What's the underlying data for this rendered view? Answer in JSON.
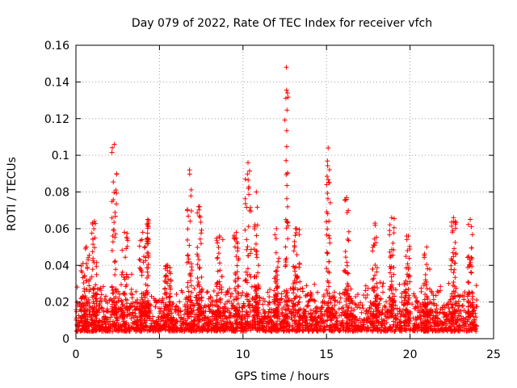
{
  "chart_data": {
    "type": "scatter",
    "title": "Day 079 of 2022, Rate Of TEC Index for receiver vfch",
    "xlabel": "GPS time / hours",
    "ylabel": "ROTI / TECUs",
    "xlim": [
      0,
      25
    ],
    "ylim": [
      0,
      0.16
    ],
    "x_ticks": [
      0,
      5,
      10,
      15,
      20,
      25
    ],
    "x_tick_labels": [
      "0",
      "5",
      "10",
      "15",
      "20",
      "25"
    ],
    "y_ticks": [
      0,
      0.02,
      0.04,
      0.06,
      0.08,
      0.1,
      0.12,
      0.14,
      0.16
    ],
    "y_tick_labels": [
      "0",
      "0.02",
      "0.04",
      "0.06",
      "0.08",
      "0.1",
      "0.12",
      "0.14",
      "0.16"
    ],
    "grid": true,
    "marker": "+",
    "marker_color": "#ff0000",
    "baseline": {
      "x_range": [
        0,
        24
      ],
      "min": 0.004,
      "max": 0.03
    },
    "bursts": [
      {
        "center": 0.6,
        "width": 0.6,
        "peak": 0.05
      },
      {
        "center": 1.1,
        "width": 0.3,
        "peak": 0.064
      },
      {
        "center": 2.3,
        "width": 0.3,
        "peak": 0.106
      },
      {
        "center": 2.9,
        "width": 0.4,
        "peak": 0.058
      },
      {
        "center": 4.0,
        "width": 0.5,
        "peak": 0.058
      },
      {
        "center": 4.3,
        "width": 0.1,
        "peak": 0.065
      },
      {
        "center": 5.5,
        "width": 0.4,
        "peak": 0.04
      },
      {
        "center": 6.8,
        "width": 0.3,
        "peak": 0.092
      },
      {
        "center": 7.4,
        "width": 0.3,
        "peak": 0.072
      },
      {
        "center": 8.6,
        "width": 0.4,
        "peak": 0.056
      },
      {
        "center": 9.6,
        "width": 0.3,
        "peak": 0.058
      },
      {
        "center": 10.3,
        "width": 0.4,
        "peak": 0.096
      },
      {
        "center": 10.8,
        "width": 0.3,
        "peak": 0.08
      },
      {
        "center": 12.0,
        "width": 0.3,
        "peak": 0.06
      },
      {
        "center": 12.6,
        "width": 0.2,
        "peak": 0.148
      },
      {
        "center": 13.2,
        "width": 0.4,
        "peak": 0.06
      },
      {
        "center": 15.1,
        "width": 0.25,
        "peak": 0.104
      },
      {
        "center": 16.2,
        "width": 0.3,
        "peak": 0.077
      },
      {
        "center": 17.9,
        "width": 0.3,
        "peak": 0.063
      },
      {
        "center": 18.9,
        "width": 0.3,
        "peak": 0.066
      },
      {
        "center": 19.8,
        "width": 0.4,
        "peak": 0.056
      },
      {
        "center": 21.0,
        "width": 0.4,
        "peak": 0.05
      },
      {
        "center": 22.6,
        "width": 0.3,
        "peak": 0.066
      },
      {
        "center": 23.6,
        "width": 0.3,
        "peak": 0.065
      }
    ]
  }
}
